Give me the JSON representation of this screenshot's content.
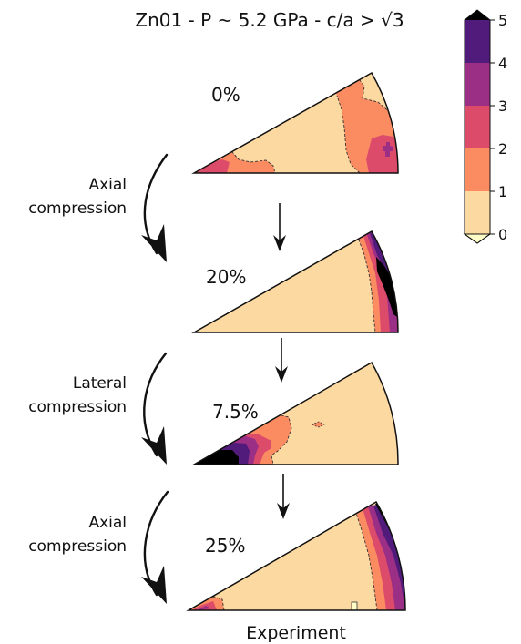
{
  "figure": {
    "title": "Zn01 - P ~ 5.2 GPa - c/a > √3",
    "footer": "Experiment"
  },
  "colorbar": {
    "ticks": [
      "0",
      "1",
      "2",
      "3",
      "4",
      "5"
    ],
    "levels": [
      {
        "range": [
          0,
          1
        ],
        "color": "#fdd9a2"
      },
      {
        "range": [
          1,
          2
        ],
        "color": "#fb8c62"
      },
      {
        "range": [
          2,
          3
        ],
        "color": "#dd4b6a"
      },
      {
        "range": [
          3,
          4
        ],
        "color": "#9b2f85"
      },
      {
        "range": [
          4,
          5
        ],
        "color": "#501b7a"
      }
    ],
    "under_color": "#fffdc8",
    "over_color": "#000000"
  },
  "panels": [
    {
      "strain": "0%",
      "step_label": ""
    },
    {
      "strain": "20%",
      "step_label": "Axial\ncompression"
    },
    {
      "strain": "7.5%",
      "step_label": "Lateral\ncompression"
    },
    {
      "strain": "25%",
      "step_label": "Axial\ncompression"
    }
  ],
  "steps": {
    "axial_1": [
      "Axial",
      "compression"
    ],
    "lateral": [
      "Lateral",
      "compression"
    ],
    "axial_2": [
      "Axial",
      "compression"
    ]
  }
}
